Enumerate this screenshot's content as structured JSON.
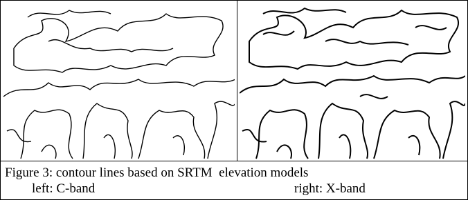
{
  "caption": {
    "title": "Figure 3: contour lines based on SRTM  elevation models",
    "left": "left: C-band",
    "right": "right: X-band"
  }
}
